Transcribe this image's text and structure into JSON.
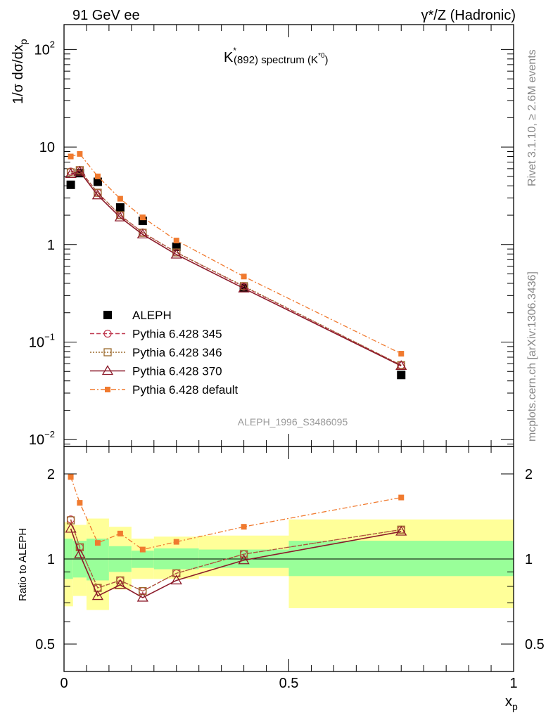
{
  "chart_data": [
    {
      "type": "scatter",
      "panel": "main",
      "header_left": "91 GeV ee",
      "header_right": "γ*/Z (Hadronic)",
      "title_main": "K",
      "title_sup": "*",
      "title_sub": "(892) spectrum (K",
      "title_sub_sup": "*0",
      "title_end": ")",
      "ylabel": "1/σ dσ/dx",
      "ylabel_sub": "p",
      "y_scale": "log",
      "ylim": [
        0.0085,
        180
      ],
      "xlim": [
        0,
        1
      ],
      "y_ticks": [
        {
          "base": "10",
          "exp": "2",
          "value": 100
        },
        {
          "base": "10",
          "exp": "",
          "value": 10
        },
        {
          "base": "1",
          "exp": "",
          "value": 1
        },
        {
          "base": "10",
          "exp": "−1",
          "value": 0.1
        },
        {
          "base": "10",
          "exp": "−2",
          "value": 0.01
        }
      ],
      "analysis_label": "ALEPH_1996_S3486095",
      "side_label_top": "Rivet 3.1.10, ≥ 2.6M events",
      "side_label_bottom": "mcplots.cern.ch [arXiv:1306.3436]",
      "legend_position": "center-left",
      "series": [
        {
          "name": "ALEPH",
          "color": "#000000",
          "style": "data",
          "marker": "square",
          "x": [
            0.015,
            0.035,
            0.075,
            0.125,
            0.175,
            0.25,
            0.4,
            0.75
          ],
          "y": [
            4.1,
            5.4,
            4.4,
            2.4,
            1.75,
            0.95,
            0.36,
            0.046
          ]
        },
        {
          "name": "Pythia 6.428 345",
          "color": "#c0394f",
          "style": "dashed",
          "marker": "circle",
          "x": [
            0.015,
            0.035,
            0.075,
            0.125,
            0.175,
            0.25,
            0.4,
            0.75
          ],
          "y": [
            5.6,
            5.8,
            3.4,
            2.0,
            1.33,
            0.83,
            0.37,
            0.058
          ]
        },
        {
          "name": "Pythia 6.428 346",
          "color": "#9c6a2c",
          "style": "dotted",
          "marker": "square-open",
          "x": [
            0.015,
            0.035,
            0.075,
            0.125,
            0.175,
            0.25,
            0.4,
            0.75
          ],
          "y": [
            5.5,
            5.8,
            3.4,
            2.0,
            1.32,
            0.83,
            0.375,
            0.058
          ]
        },
        {
          "name": "Pythia 6.428 370",
          "color": "#8b1a2a",
          "style": "solid",
          "marker": "triangle",
          "x": [
            0.015,
            0.035,
            0.075,
            0.125,
            0.175,
            0.25,
            0.4,
            0.75
          ],
          "y": [
            5.3,
            5.6,
            3.2,
            1.9,
            1.27,
            0.79,
            0.355,
            0.057
          ]
        },
        {
          "name": "Pythia 6.428 default",
          "color": "#f07a2f",
          "style": "dashdot",
          "marker": "square-filled",
          "x": [
            0.015,
            0.035,
            0.075,
            0.125,
            0.175,
            0.25,
            0.4,
            0.75
          ],
          "y": [
            8.0,
            8.5,
            5.0,
            2.95,
            1.9,
            1.1,
            0.47,
            0.076
          ]
        }
      ]
    },
    {
      "type": "scatter",
      "panel": "ratio",
      "ylabel": "Ratio to ALEPH",
      "xlabel": "x",
      "xlabel_sub": "p",
      "y_scale": "log",
      "ylim": [
        0.4,
        2.5
      ],
      "xlim": [
        0,
        1
      ],
      "x_ticks": [
        "0",
        "0.5",
        "1"
      ],
      "y_ticks": [
        {
          "label": "2",
          "value": 2
        },
        {
          "label": "1",
          "value": 1
        },
        {
          "label": "0.5",
          "value": 0.5
        }
      ],
      "band_colors": {
        "inner": "#99ff99",
        "outer": "#ffff99"
      },
      "bands": [
        {
          "x0": 0.0,
          "x1": 0.02,
          "inner": [
            0.85,
            1.18
          ],
          "outer": [
            0.68,
            1.35
          ]
        },
        {
          "x0": 0.02,
          "x1": 0.05,
          "inner": [
            0.86,
            1.16
          ],
          "outer": [
            0.74,
            1.32
          ]
        },
        {
          "x0": 0.05,
          "x1": 0.1,
          "inner": [
            0.84,
            1.18
          ],
          "outer": [
            0.66,
            1.39
          ]
        },
        {
          "x0": 0.1,
          "x1": 0.15,
          "inner": [
            0.9,
            1.11
          ],
          "outer": [
            0.78,
            1.3
          ]
        },
        {
          "x0": 0.15,
          "x1": 0.2,
          "inner": [
            0.93,
            1.07
          ],
          "outer": [
            0.85,
            1.18
          ]
        },
        {
          "x0": 0.2,
          "x1": 0.3,
          "inner": [
            0.92,
            1.09
          ],
          "outer": [
            0.85,
            1.2
          ]
        },
        {
          "x0": 0.3,
          "x1": 0.5,
          "inner": [
            0.93,
            1.08
          ],
          "outer": [
            0.87,
            1.21
          ]
        },
        {
          "x0": 0.5,
          "x1": 1.0,
          "inner": [
            0.87,
            1.16
          ],
          "outer": [
            0.67,
            1.38
          ]
        }
      ],
      "series": [
        {
          "name": "Pythia 6.428 345",
          "color": "#c0394f",
          "style": "dashed",
          "marker": "circle",
          "x": [
            0.015,
            0.035,
            0.075,
            0.125,
            0.175,
            0.25,
            0.4,
            0.75
          ],
          "y": [
            1.38,
            1.1,
            0.79,
            0.84,
            0.77,
            0.89,
            1.04,
            1.27
          ]
        },
        {
          "name": "Pythia 6.428 346",
          "color": "#9c6a2c",
          "style": "dotted",
          "marker": "square-open",
          "x": [
            0.015,
            0.035,
            0.075,
            0.125,
            0.175,
            0.25,
            0.4,
            0.75
          ],
          "y": [
            1.37,
            1.1,
            0.79,
            0.84,
            0.77,
            0.89,
            1.04,
            1.27
          ]
        },
        {
          "name": "Pythia 6.428 370",
          "color": "#8b1a2a",
          "style": "solid",
          "marker": "triangle",
          "x": [
            0.015,
            0.035,
            0.075,
            0.125,
            0.175,
            0.25,
            0.4,
            0.75
          ],
          "y": [
            1.28,
            1.04,
            0.74,
            0.81,
            0.73,
            0.84,
            0.99,
            1.25
          ]
        },
        {
          "name": "Pythia 6.428 default",
          "color": "#f07a2f",
          "style": "dashdot",
          "marker": "square-filled",
          "x": [
            0.015,
            0.035,
            0.075,
            0.125,
            0.175,
            0.25,
            0.4,
            0.75
          ],
          "y": [
            1.95,
            1.58,
            1.14,
            1.23,
            1.08,
            1.15,
            1.3,
            1.65
          ]
        }
      ]
    }
  ]
}
